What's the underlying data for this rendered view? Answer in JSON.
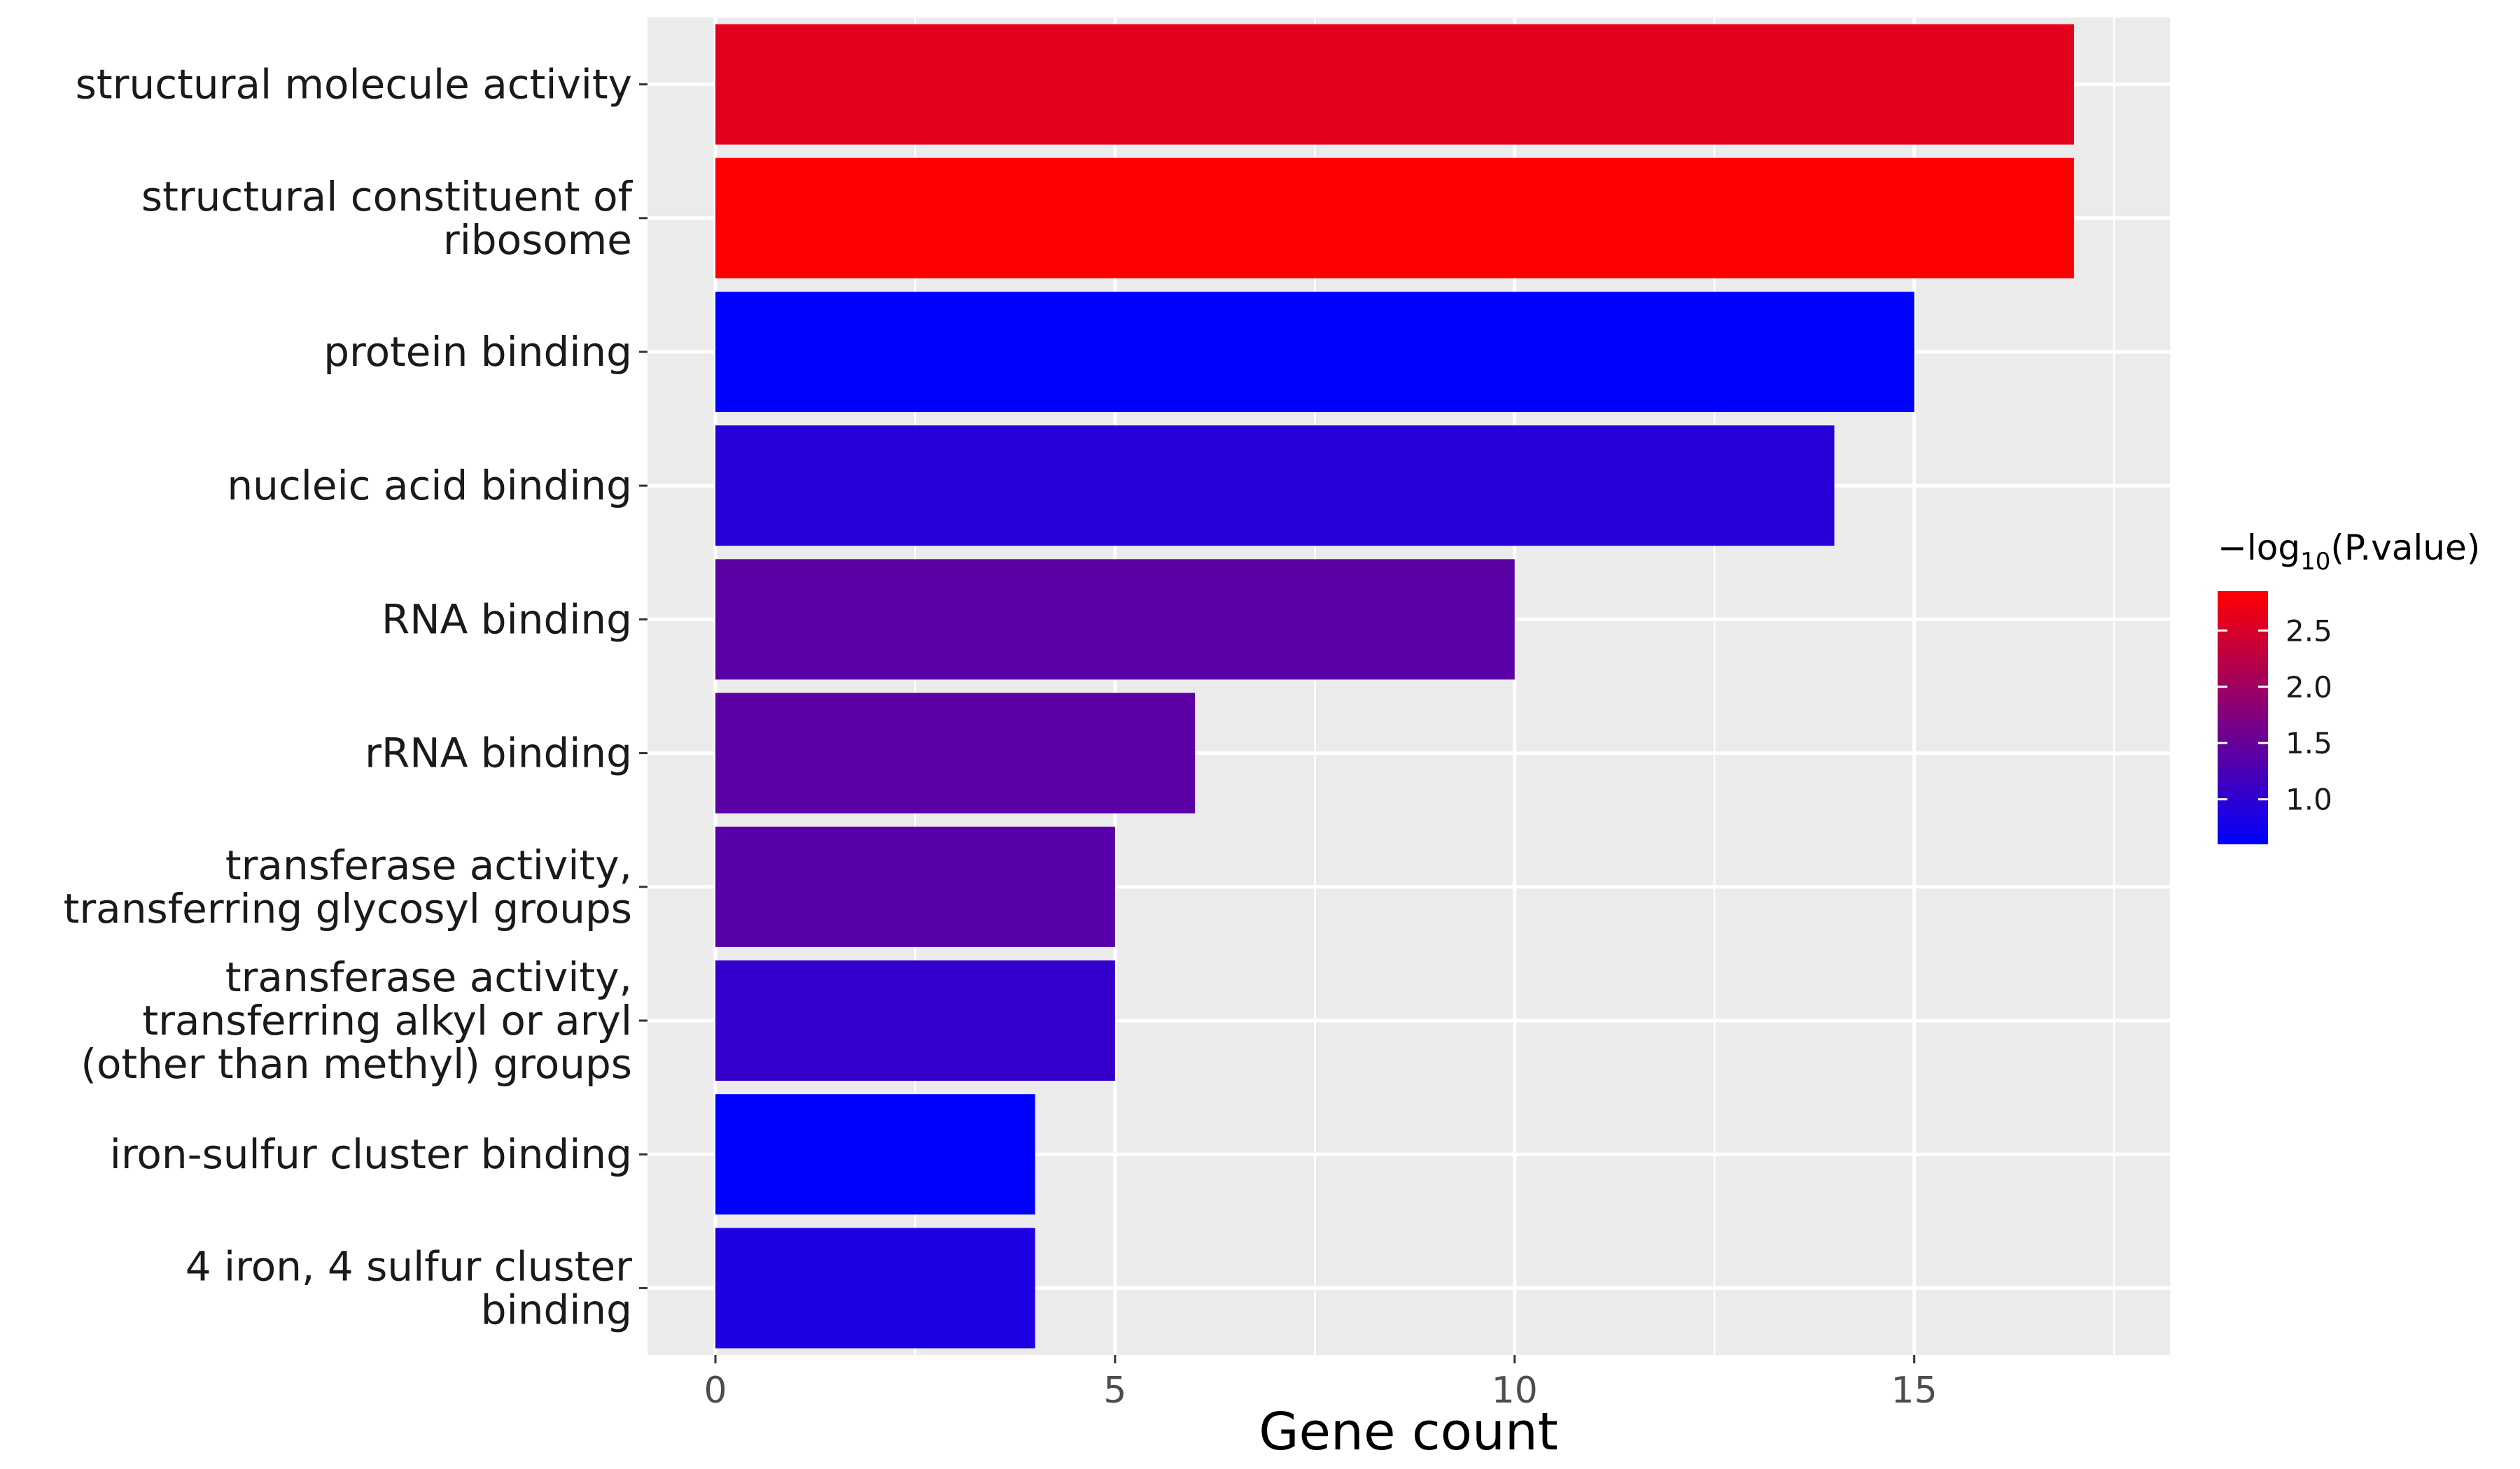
{
  "chart_data": {
    "type": "bar",
    "orientation": "horizontal",
    "categories": [
      [
        "structural molecule activity"
      ],
      [
        "structural constituent of",
        "ribosome"
      ],
      [
        "protein binding"
      ],
      [
        "nucleic acid binding"
      ],
      [
        "RNA binding"
      ],
      [
        "rRNA binding"
      ],
      [
        "transferase activity,",
        "transferring glycosyl groups"
      ],
      [
        "transferase activity,",
        "transferring alkyl or aryl",
        "(other than methyl) groups"
      ],
      [
        "iron-sulfur cluster binding"
      ],
      [
        "4 iron, 4 sulfur cluster",
        "binding"
      ]
    ],
    "values": [
      17,
      17,
      15,
      14,
      10,
      6,
      5,
      5,
      4,
      4
    ],
    "color_values": [
      2.6,
      2.85,
      0.6,
      0.95,
      1.4,
      1.4,
      1.35,
      1.05,
      0.6,
      0.85
    ],
    "xlabel": "Gene count",
    "ylabel": "",
    "xlim": [
      -0.85,
      18.2
    ],
    "xticks": [
      0,
      5,
      10,
      15
    ],
    "grid": true,
    "legend": {
      "title_prefix": "−log",
      "title_sub": "10",
      "title_suffix": "(P.value)",
      "placement": "right",
      "range": [
        0.6,
        2.85
      ],
      "ticks": [
        "1.0",
        "1.5",
        "2.0",
        "2.5"
      ],
      "tick_values": [
        1.0,
        1.5,
        2.0,
        2.5
      ],
      "low_color": "#0000ff",
      "high_color": "#ff0000"
    },
    "panel_color": "#ebebeb",
    "grid_color": "#ffffff"
  }
}
